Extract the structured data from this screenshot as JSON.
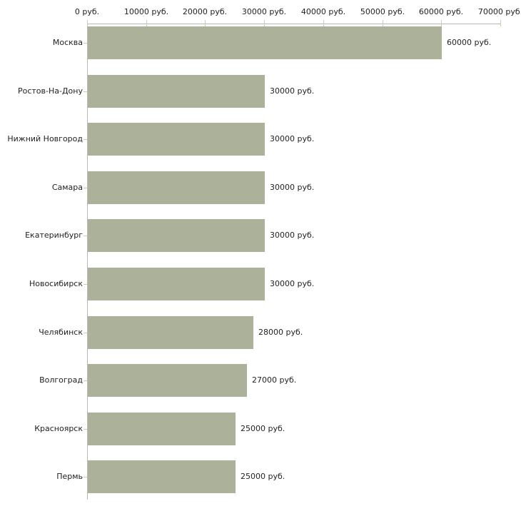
{
  "chart_data": {
    "type": "bar",
    "orientation": "horizontal",
    "title": "",
    "xlabel": "",
    "ylabel": "",
    "xlim": [
      0,
      70000
    ],
    "x_tick_values": [
      0,
      10000,
      20000,
      30000,
      40000,
      50000,
      60000,
      70000
    ],
    "x_tick_labels": [
      "0 руб.",
      "10000 руб.",
      "20000 руб.",
      "30000 руб.",
      "40000 руб.",
      "50000 руб.",
      "60000 руб.",
      "70000 руб."
    ],
    "categories": [
      "Москва",
      "Ростов-На-Дону",
      "Нижний Новгород",
      "Самара",
      "Екатеринбург",
      "Новосибирск",
      "Челябинск",
      "Волгоград",
      "Красноярск",
      "Пермь"
    ],
    "values": [
      60000,
      30000,
      30000,
      30000,
      30000,
      30000,
      28000,
      27000,
      25000,
      25000
    ],
    "value_labels": [
      "60000 руб.",
      "30000 руб.",
      "30000 руб.",
      "30000 руб.",
      "30000 руб.",
      "30000 руб.",
      "28000 руб.",
      "27000 руб.",
      "25000 руб.",
      "25000 руб."
    ],
    "grid": false,
    "legend": null,
    "colors": {
      "bar": "#acb29a",
      "axis_line": "#b8b8b8",
      "tick_mark": "#cfcfa6",
      "text": "#222222",
      "background": "#ffffff"
    }
  }
}
